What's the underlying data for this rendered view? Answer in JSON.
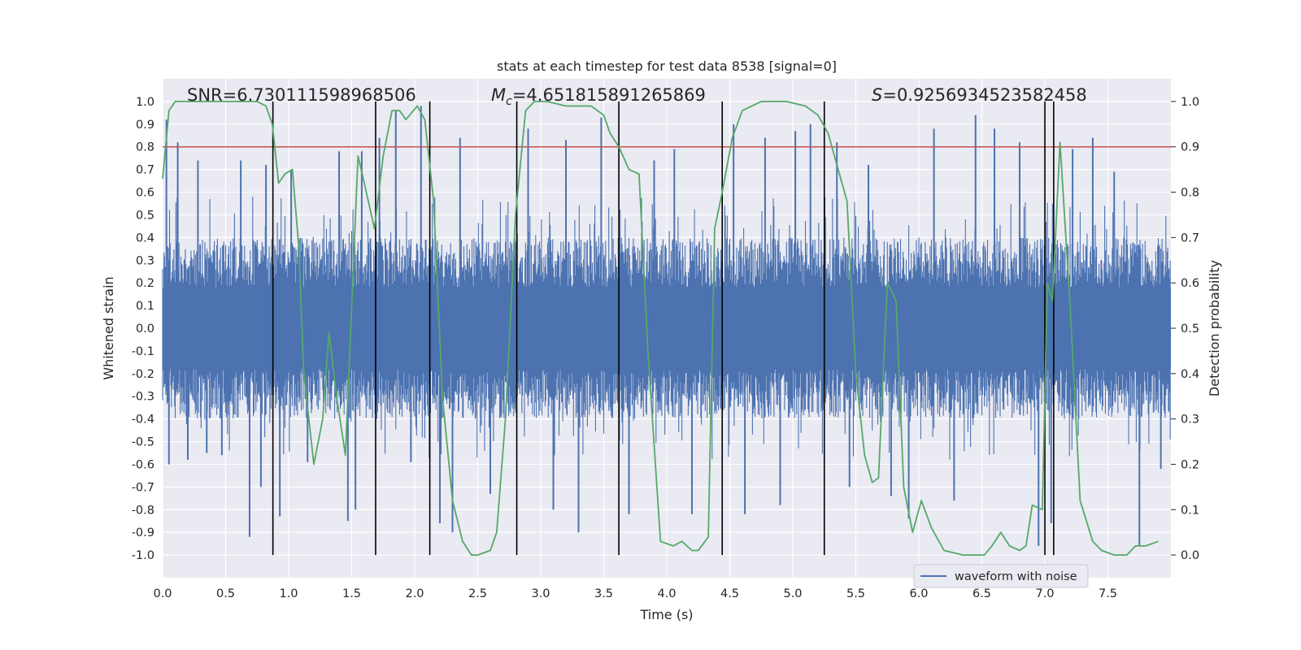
{
  "chart_data": {
    "type": "line",
    "title": "stats at each timestep for test data 8538 [signal=0]",
    "xlabel": "Time (s)",
    "ylabel_left": "Whitened strain",
    "ylabel_right": "Detection probability",
    "xlim": [
      0.0,
      8.0
    ],
    "ylim_left": [
      -1.1,
      1.1
    ],
    "ylim_right": [
      -0.05,
      1.05
    ],
    "x_ticks": [
      0.0,
      0.5,
      1.0,
      1.5,
      2.0,
      2.5,
      3.0,
      3.5,
      4.0,
      4.5,
      5.0,
      5.5,
      6.0,
      6.5,
      7.0,
      7.5
    ],
    "x_tick_labels": [
      "0.0",
      "0.5",
      "1.0",
      "1.5",
      "2.0",
      "2.5",
      "3.0",
      "3.5",
      "4.0",
      "4.5",
      "5.0",
      "5.5",
      "6.0",
      "6.5",
      "7.0",
      "7.5"
    ],
    "y_left_ticks": [
      1.0,
      0.9,
      0.8,
      0.7,
      0.6,
      0.5,
      0.4,
      0.3,
      0.2,
      0.1,
      0.0,
      -0.1,
      -0.2,
      -0.3,
      -0.4,
      -0.5,
      -0.6,
      -0.7,
      -0.8,
      -0.9,
      -1.0
    ],
    "y_left_tick_labels": [
      "1.0",
      "0.9",
      "0.8",
      "0.7",
      "0.6",
      "0.5",
      "0.4",
      "0.3",
      "0.2",
      "0.1",
      "0.0",
      "-0.1",
      "-0.2",
      "-0.3",
      "-0.4",
      "-0.5",
      "-0.6",
      "-0.7",
      "-0.8",
      "-0.9",
      "-1.0"
    ],
    "y_right_ticks": [
      1.0,
      0.9,
      0.8,
      0.7,
      0.6,
      0.5,
      0.4,
      0.3,
      0.2,
      0.1,
      0.0
    ],
    "y_right_tick_labels": [
      "1.0",
      "0.9",
      "0.8",
      "0.7",
      "0.6",
      "0.5",
      "0.4",
      "0.3",
      "0.2",
      "0.1",
      "0.0"
    ],
    "threshold": {
      "value": 0.9,
      "axis": "right",
      "color": "#c44e52"
    },
    "annotations": {
      "snr": "SNR=6.730111598968506",
      "mc_symbol": "M",
      "mc_sub": "c",
      "mc_value": "=4.651815891265869",
      "s_symbol": "S",
      "s_value": "=0.9256934523582458"
    },
    "event_lines": [
      0.875,
      1.69,
      2.12,
      2.81,
      3.62,
      4.44,
      5.25,
      7.0,
      7.07
    ],
    "event_line_color": "#000000",
    "waveform": {
      "name": "waveform with noise",
      "color": "#4c72b0",
      "x_range": [
        0.0,
        8.0
      ],
      "core_envelope": 0.4,
      "spikes": [
        [
          0.03,
          0.92
        ],
        [
          0.05,
          -0.6
        ],
        [
          0.12,
          0.82
        ],
        [
          0.2,
          -0.58
        ],
        [
          0.28,
          0.74
        ],
        [
          0.35,
          -0.55
        ],
        [
          0.47,
          -0.56
        ],
        [
          0.62,
          0.74
        ],
        [
          0.69,
          -0.92
        ],
        [
          0.78,
          -0.7
        ],
        [
          0.82,
          0.72
        ],
        [
          0.93,
          -0.83
        ],
        [
          1.02,
          0.7
        ],
        [
          1.15,
          -0.59
        ],
        [
          1.4,
          0.78
        ],
        [
          1.47,
          -0.85
        ],
        [
          1.53,
          -0.8
        ],
        [
          1.58,
          0.78
        ],
        [
          1.72,
          0.84
        ],
        [
          1.85,
          0.96
        ],
        [
          1.97,
          -0.59
        ],
        [
          2.05,
          0.98
        ],
        [
          2.2,
          -0.86
        ],
        [
          2.3,
          -0.9
        ],
        [
          2.36,
          0.84
        ],
        [
          2.6,
          -0.73
        ],
        [
          2.9,
          0.88
        ],
        [
          3.1,
          -0.8
        ],
        [
          3.2,
          0.83
        ],
        [
          3.3,
          -0.9
        ],
        [
          3.48,
          0.93
        ],
        [
          3.7,
          -0.82
        ],
        [
          3.9,
          0.74
        ],
        [
          4.06,
          0.79
        ],
        [
          4.2,
          -0.82
        ],
        [
          4.53,
          0.9
        ],
        [
          4.62,
          -0.82
        ],
        [
          4.78,
          0.84
        ],
        [
          4.9,
          -0.78
        ],
        [
          5.02,
          0.87
        ],
        [
          5.14,
          0.9
        ],
        [
          5.35,
          0.82
        ],
        [
          5.45,
          -0.7
        ],
        [
          5.6,
          0.72
        ],
        [
          5.78,
          -0.74
        ],
        [
          5.92,
          -0.84
        ],
        [
          6.12,
          0.88
        ],
        [
          6.28,
          -0.76
        ],
        [
          6.45,
          0.94
        ],
        [
          6.6,
          0.88
        ],
        [
          6.8,
          0.82
        ],
        [
          6.95,
          -0.96
        ],
        [
          7.05,
          -0.86
        ],
        [
          7.22,
          0.79
        ],
        [
          7.38,
          0.84
        ],
        [
          7.55,
          0.69
        ],
        [
          7.75,
          -0.96
        ],
        [
          7.92,
          -0.62
        ]
      ]
    },
    "probability": {
      "name": "Detection probability",
      "color": "#55a868",
      "x": [
        0.0,
        0.05,
        0.1,
        0.2,
        0.4,
        0.6,
        0.75,
        0.82,
        0.87,
        0.92,
        0.97,
        1.03,
        1.08,
        1.12,
        1.2,
        1.27,
        1.32,
        1.38,
        1.45,
        1.5,
        1.55,
        1.6,
        1.68,
        1.75,
        1.82,
        1.88,
        1.93,
        2.02,
        2.08,
        2.15,
        2.22,
        2.3,
        2.38,
        2.45,
        2.5,
        2.6,
        2.65,
        2.72,
        2.8,
        2.88,
        2.95,
        3.05,
        3.2,
        3.4,
        3.5,
        3.55,
        3.62,
        3.7,
        3.78,
        3.85,
        3.95,
        4.05,
        4.12,
        4.2,
        4.25,
        4.33,
        4.38,
        4.44,
        4.52,
        4.6,
        4.75,
        4.85,
        4.95,
        5.1,
        5.2,
        5.28,
        5.35,
        5.43,
        5.5,
        5.57,
        5.63,
        5.68,
        5.75,
        5.82,
        5.88,
        5.95,
        6.02,
        6.1,
        6.2,
        6.35,
        6.47,
        6.52,
        6.58,
        6.65,
        6.72,
        6.8,
        6.85,
        6.9,
        6.98,
        7.02,
        7.06,
        7.12,
        7.2,
        7.28,
        7.38,
        7.45,
        7.55,
        7.65,
        7.72,
        7.8,
        7.9
      ],
      "y": [
        0.83,
        0.98,
        1.0,
        1.0,
        1.0,
        1.0,
        1.0,
        0.99,
        0.95,
        0.82,
        0.84,
        0.85,
        0.68,
        0.4,
        0.2,
        0.3,
        0.49,
        0.35,
        0.22,
        0.55,
        0.88,
        0.82,
        0.72,
        0.88,
        0.98,
        0.98,
        0.96,
        0.99,
        0.96,
        0.78,
        0.35,
        0.12,
        0.03,
        0.0,
        0.0,
        0.01,
        0.05,
        0.3,
        0.75,
        0.98,
        1.0,
        1.0,
        0.99,
        0.99,
        0.97,
        0.93,
        0.9,
        0.85,
        0.84,
        0.45,
        0.03,
        0.02,
        0.03,
        0.01,
        0.01,
        0.04,
        0.72,
        0.8,
        0.92,
        0.98,
        1.0,
        1.0,
        1.0,
        0.99,
        0.97,
        0.93,
        0.86,
        0.78,
        0.4,
        0.22,
        0.16,
        0.17,
        0.6,
        0.56,
        0.15,
        0.05,
        0.12,
        0.06,
        0.01,
        0.0,
        0.0,
        0.0,
        0.02,
        0.05,
        0.02,
        0.01,
        0.02,
        0.11,
        0.1,
        0.6,
        0.56,
        0.91,
        0.55,
        0.12,
        0.03,
        0.01,
        0.0,
        0.0,
        0.02,
        0.02,
        0.03
      ]
    },
    "legend": {
      "label": "waveform with noise",
      "placement": "lower-right"
    },
    "grid": true
  }
}
